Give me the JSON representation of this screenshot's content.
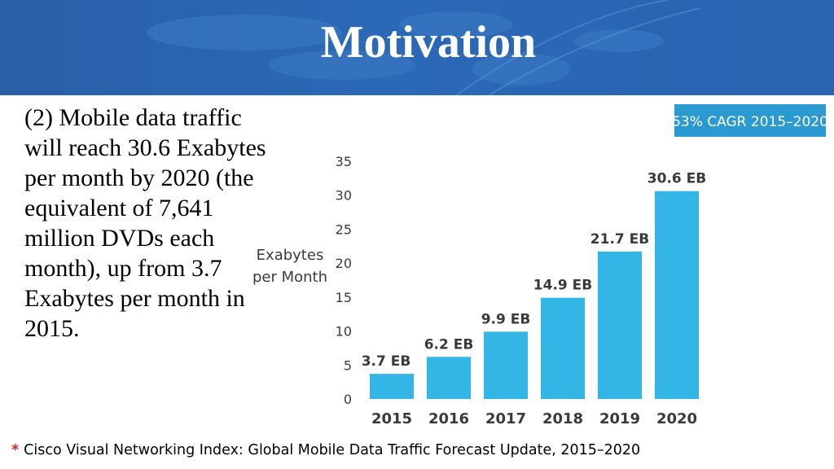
{
  "slide": {
    "title": "Motivation",
    "body_text": "(2) Mobile data traffic will reach 30.6 Exabytes per month by 2020 (the equivalent of 7,641 million DVDs each month), up from 3.7 Exabytes per month in 2015.",
    "footnote_marker": "*",
    "footnote": "Cisco Visual Networking Index: Global Mobile Data Traffic Forecast Update, 2015–2020"
  },
  "colors": {
    "header_bg": "#2b68b6",
    "bar": "#33b5e5",
    "badge_bg": "#2b9ad0",
    "axis_text": "#3a3a3a",
    "footnote_star": "#e0201b"
  },
  "chart_data": {
    "type": "bar",
    "badge": "53% CAGR 2015–2020",
    "ylabel_lines": [
      "Exabytes",
      "per Month"
    ],
    "categories": [
      "2015",
      "2016",
      "2017",
      "2018",
      "2019",
      "2020"
    ],
    "values": [
      3.7,
      6.2,
      9.9,
      14.9,
      21.7,
      30.6
    ],
    "data_labels": [
      "3.7 EB",
      "6.2 EB",
      "9.9 EB",
      "14.9 EB",
      "21.7 EB",
      "30.6 EB"
    ],
    "ylim": [
      0,
      35
    ],
    "yticks": [
      0,
      5,
      10,
      15,
      20,
      25,
      30,
      35
    ],
    "grid": false,
    "legend": "none"
  }
}
